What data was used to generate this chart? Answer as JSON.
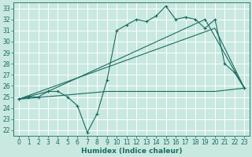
{
  "xlabel": "Humidex (Indice chaleur)",
  "bg_color": "#c8e8e0",
  "grid_color": "#ffffff",
  "line_color": "#1a6b60",
  "xlim": [
    -0.5,
    23.5
  ],
  "ylim": [
    21.5,
    33.5
  ],
  "xticks": [
    0,
    1,
    2,
    3,
    4,
    5,
    6,
    7,
    8,
    9,
    10,
    11,
    12,
    13,
    14,
    15,
    16,
    17,
    18,
    19,
    20,
    21,
    22,
    23
  ],
  "yticks": [
    22,
    23,
    24,
    25,
    26,
    27,
    28,
    29,
    30,
    31,
    32,
    33
  ],
  "series1_x": [
    0,
    1,
    2,
    3,
    4,
    5,
    6,
    7,
    8,
    9,
    10,
    11,
    12,
    13,
    14,
    15,
    16,
    17,
    18,
    19,
    20,
    21,
    22,
    23
  ],
  "series1_y": [
    24.8,
    25.0,
    25.0,
    25.5,
    25.5,
    25.0,
    24.2,
    21.8,
    23.5,
    26.5,
    31.0,
    31.5,
    32.0,
    31.8,
    32.3,
    33.2,
    32.0,
    32.2,
    32.0,
    31.2,
    32.0,
    28.0,
    27.2,
    25.8
  ],
  "series2_x": [
    0,
    3,
    19,
    23
  ],
  "series2_y": [
    24.8,
    25.5,
    32.0,
    25.8
  ],
  "series3_x": [
    0,
    20,
    23
  ],
  "series3_y": [
    24.8,
    31.2,
    25.8
  ],
  "series4_x": [
    0,
    9,
    10,
    20,
    23
  ],
  "series4_y": [
    24.8,
    25.5,
    25.5,
    25.5,
    25.8
  ],
  "xlabel_fontsize": 6.5,
  "tick_fontsize": 5.5
}
